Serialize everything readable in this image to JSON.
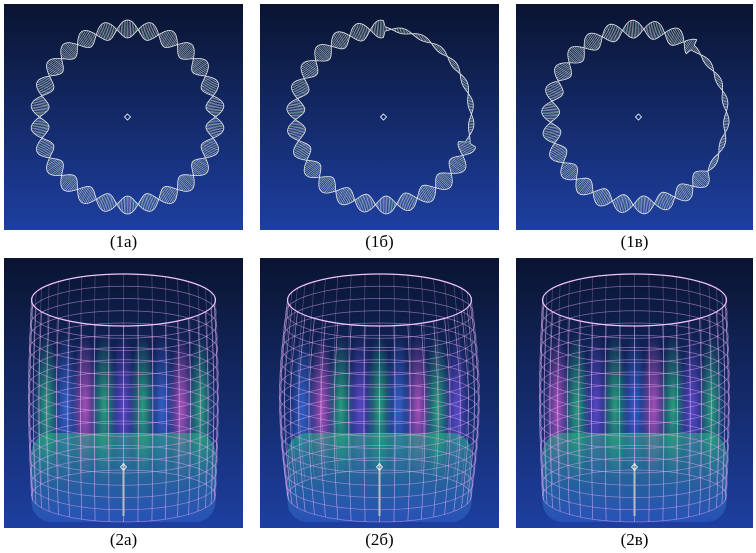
{
  "panels": [
    {
      "caption": "(1а)"
    },
    {
      "caption": "(1б)"
    },
    {
      "caption": "(1в)"
    },
    {
      "caption": "(2а)"
    },
    {
      "caption": "(2б)"
    },
    {
      "caption": "(2в)"
    }
  ]
}
